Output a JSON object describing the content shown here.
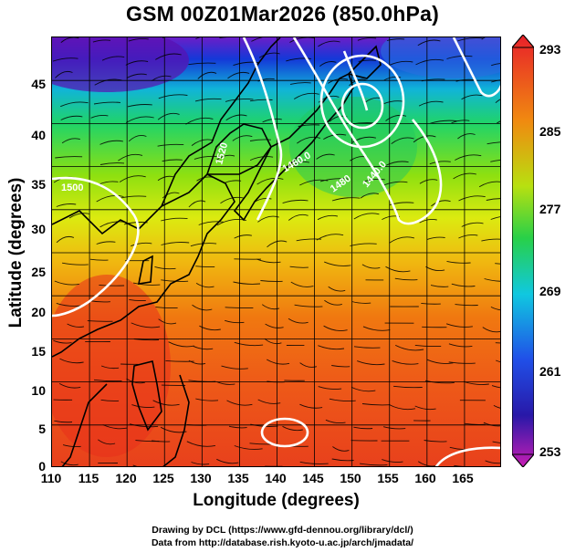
{
  "title": "GSM 00Z01Mar2026 (850.0hPa)",
  "x_axis": {
    "label": "Longitude (degrees)",
    "ticks": [
      "110",
      "115",
      "120",
      "125",
      "130",
      "135",
      "140",
      "145",
      "150",
      "155",
      "160",
      "165"
    ]
  },
  "y_axis": {
    "label": "Latitude  (degrees)",
    "ticks": [
      "45",
      "40",
      "35",
      "30",
      "25",
      "20",
      "15",
      "10",
      "5",
      "0"
    ]
  },
  "colorbar": {
    "ticks": [
      "293",
      "285",
      "277",
      "269",
      "261",
      "253"
    ],
    "top_color": "#e8202a",
    "bottom_color": "#c81eb4"
  },
  "contour_labels": [
    "1500",
    "1520",
    "1440.0",
    "1460.0",
    "1480"
  ],
  "credits": {
    "line1": "Drawing by DCL (https://www.gfd-dennou.org/library/dcl/)",
    "line2": "Data from http://database.rish.kyoto-u.ac.jp/arch/jmadata/"
  },
  "field": {
    "variable": "temperature (K)",
    "lon_range": [
      110,
      170
    ],
    "lat_range": [
      0,
      50
    ],
    "color_scale_range": [
      253,
      293
    ],
    "coastline": "Asia / Japan / Philippines",
    "streamlines": "wind vectors"
  }
}
